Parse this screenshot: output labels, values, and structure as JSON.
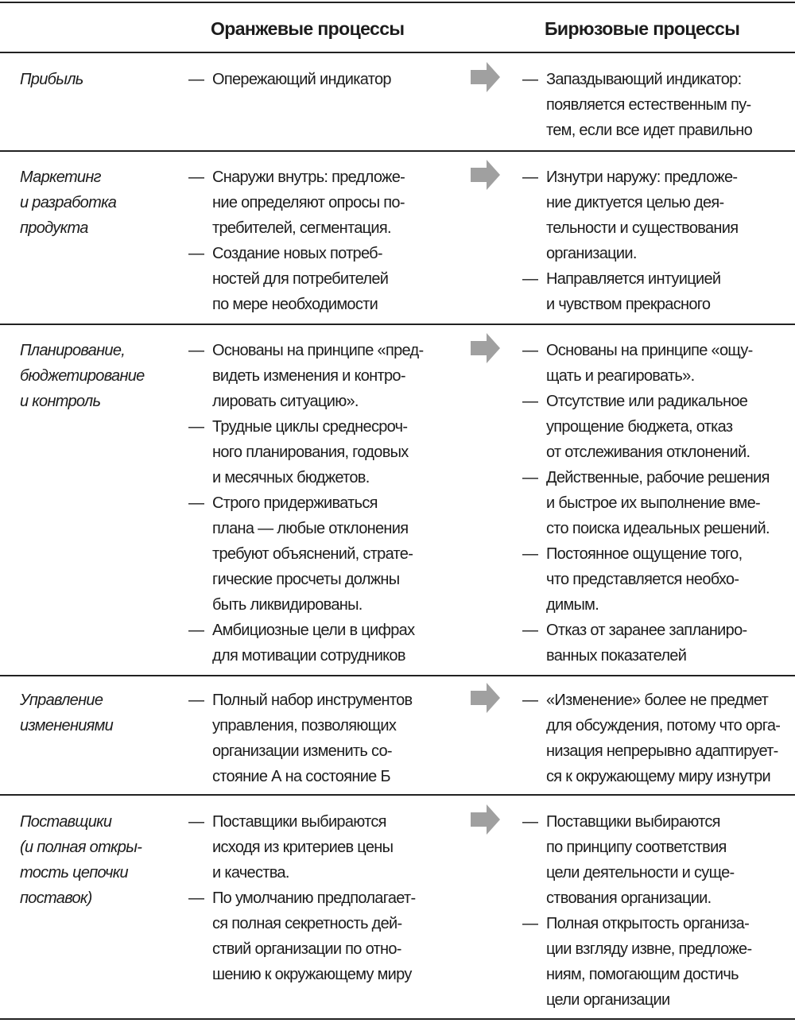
{
  "header": {
    "orange": "Оранжевые процессы",
    "teal": "Бирюзовые процессы"
  },
  "arrow_color": "#a0a0a0",
  "dash": "—",
  "rows": [
    {
      "label": [
        "Прибыль"
      ],
      "orange": [
        [
          "Опережающий индикатор"
        ]
      ],
      "teal": [
        [
          "Запаздывающий индикатор:",
          "появляется естественным пу-",
          "тем, если все идет правильно"
        ]
      ]
    },
    {
      "label": [
        "Маркетинг",
        "и разработка",
        "продукта"
      ],
      "orange": [
        [
          "Снаружи внутрь: предложе-",
          "ние определяют опросы по-",
          "требителей, сегментация."
        ],
        [
          "Создание новых потреб-",
          "ностей для потребителей",
          "по мере необходимости"
        ]
      ],
      "teal": [
        [
          "Изнутри наружу: предложе-",
          "ние диктуется целью дея-",
          "тельности и существования",
          "организации."
        ],
        [
          "Направляется интуицией",
          "и чувством прекрасного"
        ]
      ]
    },
    {
      "label": [
        "Планирование,",
        "бюджетирование",
        "и контроль"
      ],
      "orange": [
        [
          "Основаны на принципе «пред-",
          "видеть изменения и контро-",
          "лировать ситуацию»."
        ],
        [
          "Трудные циклы среднесроч-",
          "ного планирования, годовых",
          "и месячных бюджетов."
        ],
        [
          "Строго придерживаться",
          "плана — любые отклонения",
          "требуют объяснений, страте-",
          "гические просчеты должны",
          "быть ликвидированы."
        ],
        [
          "Амбициозные цели в цифрах",
          "для мотивации сотрудников"
        ]
      ],
      "teal": [
        [
          "Основаны на принципе «ощу-",
          "щать и реагировать»."
        ],
        [
          "Отсутствие или радикальное",
          "упрощение бюджета, отказ",
          "от отслеживания отклонений."
        ],
        [
          "Действенные, рабочие решения",
          "и быстрое их выполнение вме-",
          "сто поиска идеальных решений."
        ],
        [
          "Постоянное ощущение того,",
          "что представляется необхо-",
          "димым."
        ],
        [
          "Отказ от заранее запланиро-",
          "ванных показателей"
        ]
      ]
    },
    {
      "label": [
        "Управление",
        "изменениями"
      ],
      "orange": [
        [
          "Полный набор инструментов",
          "управления, позволяющих",
          "организации изменить со-",
          "стояние А на состояние Б"
        ]
      ],
      "teal": [
        [
          "«Изменение» более не предмет",
          "для обсуждения, потому что орга-",
          "низация непрерывно адаптирует-",
          "ся к окружающему миру изнутри"
        ]
      ]
    },
    {
      "label": [
        "Поставщики",
        "(и полная откры-",
        "тость цепочки",
        "поставок)"
      ],
      "orange": [
        [
          "Поставщики выбираются",
          "исходя из критериев цены",
          "и качества."
        ],
        [
          "По умолчанию предполагает-",
          "ся полная секретность дей-",
          "ствий организации по отно-",
          "шению к окружающему миру"
        ]
      ],
      "teal": [
        [
          "Поставщики выбираются",
          "по принципу соответствия",
          "цели деятельности и суще-",
          "ствования организации."
        ],
        [
          "Полная открытость организа-",
          "ции взгляду извне, предложе-",
          "ниям, помогающим достичь",
          "цели организации"
        ]
      ]
    }
  ]
}
